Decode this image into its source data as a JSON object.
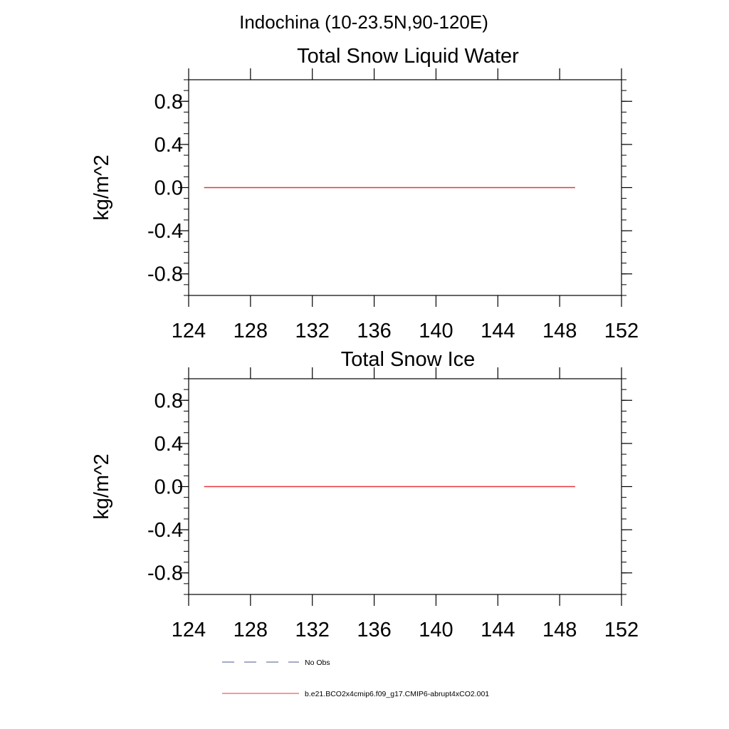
{
  "figure": {
    "suptitle": "Indochina (10-23.5N,90-120E)"
  },
  "chart_data": [
    {
      "type": "line",
      "title": "Total Snow Liquid Water",
      "xlabel": "",
      "ylabel": "kg/m^2",
      "xlim": [
        124,
        152
      ],
      "ylim": [
        -1.0,
        1.0
      ],
      "xticks": [
        124,
        128,
        132,
        136,
        140,
        144,
        148,
        152
      ],
      "xtick_labels": [
        "124",
        "128",
        "132",
        "136",
        "140",
        "144",
        "148",
        "152"
      ],
      "yticks": [
        0.8,
        0.4,
        0.0,
        -0.4,
        -0.8
      ],
      "ytick_labels": [
        "0.8",
        "0.4",
        "0.0",
        "-0.4",
        "-0.8"
      ],
      "grid": false,
      "series": [
        {
          "name": "b.e21.BCO2x4cmip6.f09_g17.CMIP6-abrupt4xCO2.001",
          "color": "#e8343c",
          "x": [
            125,
            149
          ],
          "y": [
            0.0,
            0.0
          ]
        }
      ]
    },
    {
      "type": "line",
      "title": "Total Snow Ice",
      "xlabel": "",
      "ylabel": "kg/m^2",
      "xlim": [
        124,
        152
      ],
      "ylim": [
        -1.0,
        1.0
      ],
      "xticks": [
        124,
        128,
        132,
        136,
        140,
        144,
        148,
        152
      ],
      "xtick_labels": [
        "124",
        "128",
        "132",
        "136",
        "140",
        "144",
        "148",
        "152"
      ],
      "yticks": [
        0.8,
        0.4,
        0.0,
        -0.4,
        -0.8
      ],
      "ytick_labels": [
        "0.8",
        "0.4",
        "0.0",
        "-0.4",
        "-0.8"
      ],
      "grid": false,
      "series": [
        {
          "name": "b.e21.BCO2x4cmip6.f09_g17.CMIP6-abrupt4xCO2.001",
          "color": "#e8343c",
          "x": [
            125,
            149
          ],
          "y": [
            0.0,
            0.0
          ]
        }
      ]
    }
  ],
  "legend": {
    "placement": "bottom",
    "items": [
      {
        "label": "No Obs",
        "style": "dashed",
        "color": "#4a5a8c"
      },
      {
        "label": "b.e21.BCO2x4cmip6.f09_g17.CMIP6-abrupt4xCO2.001",
        "style": "solid",
        "color": "#e8343c"
      }
    ]
  }
}
